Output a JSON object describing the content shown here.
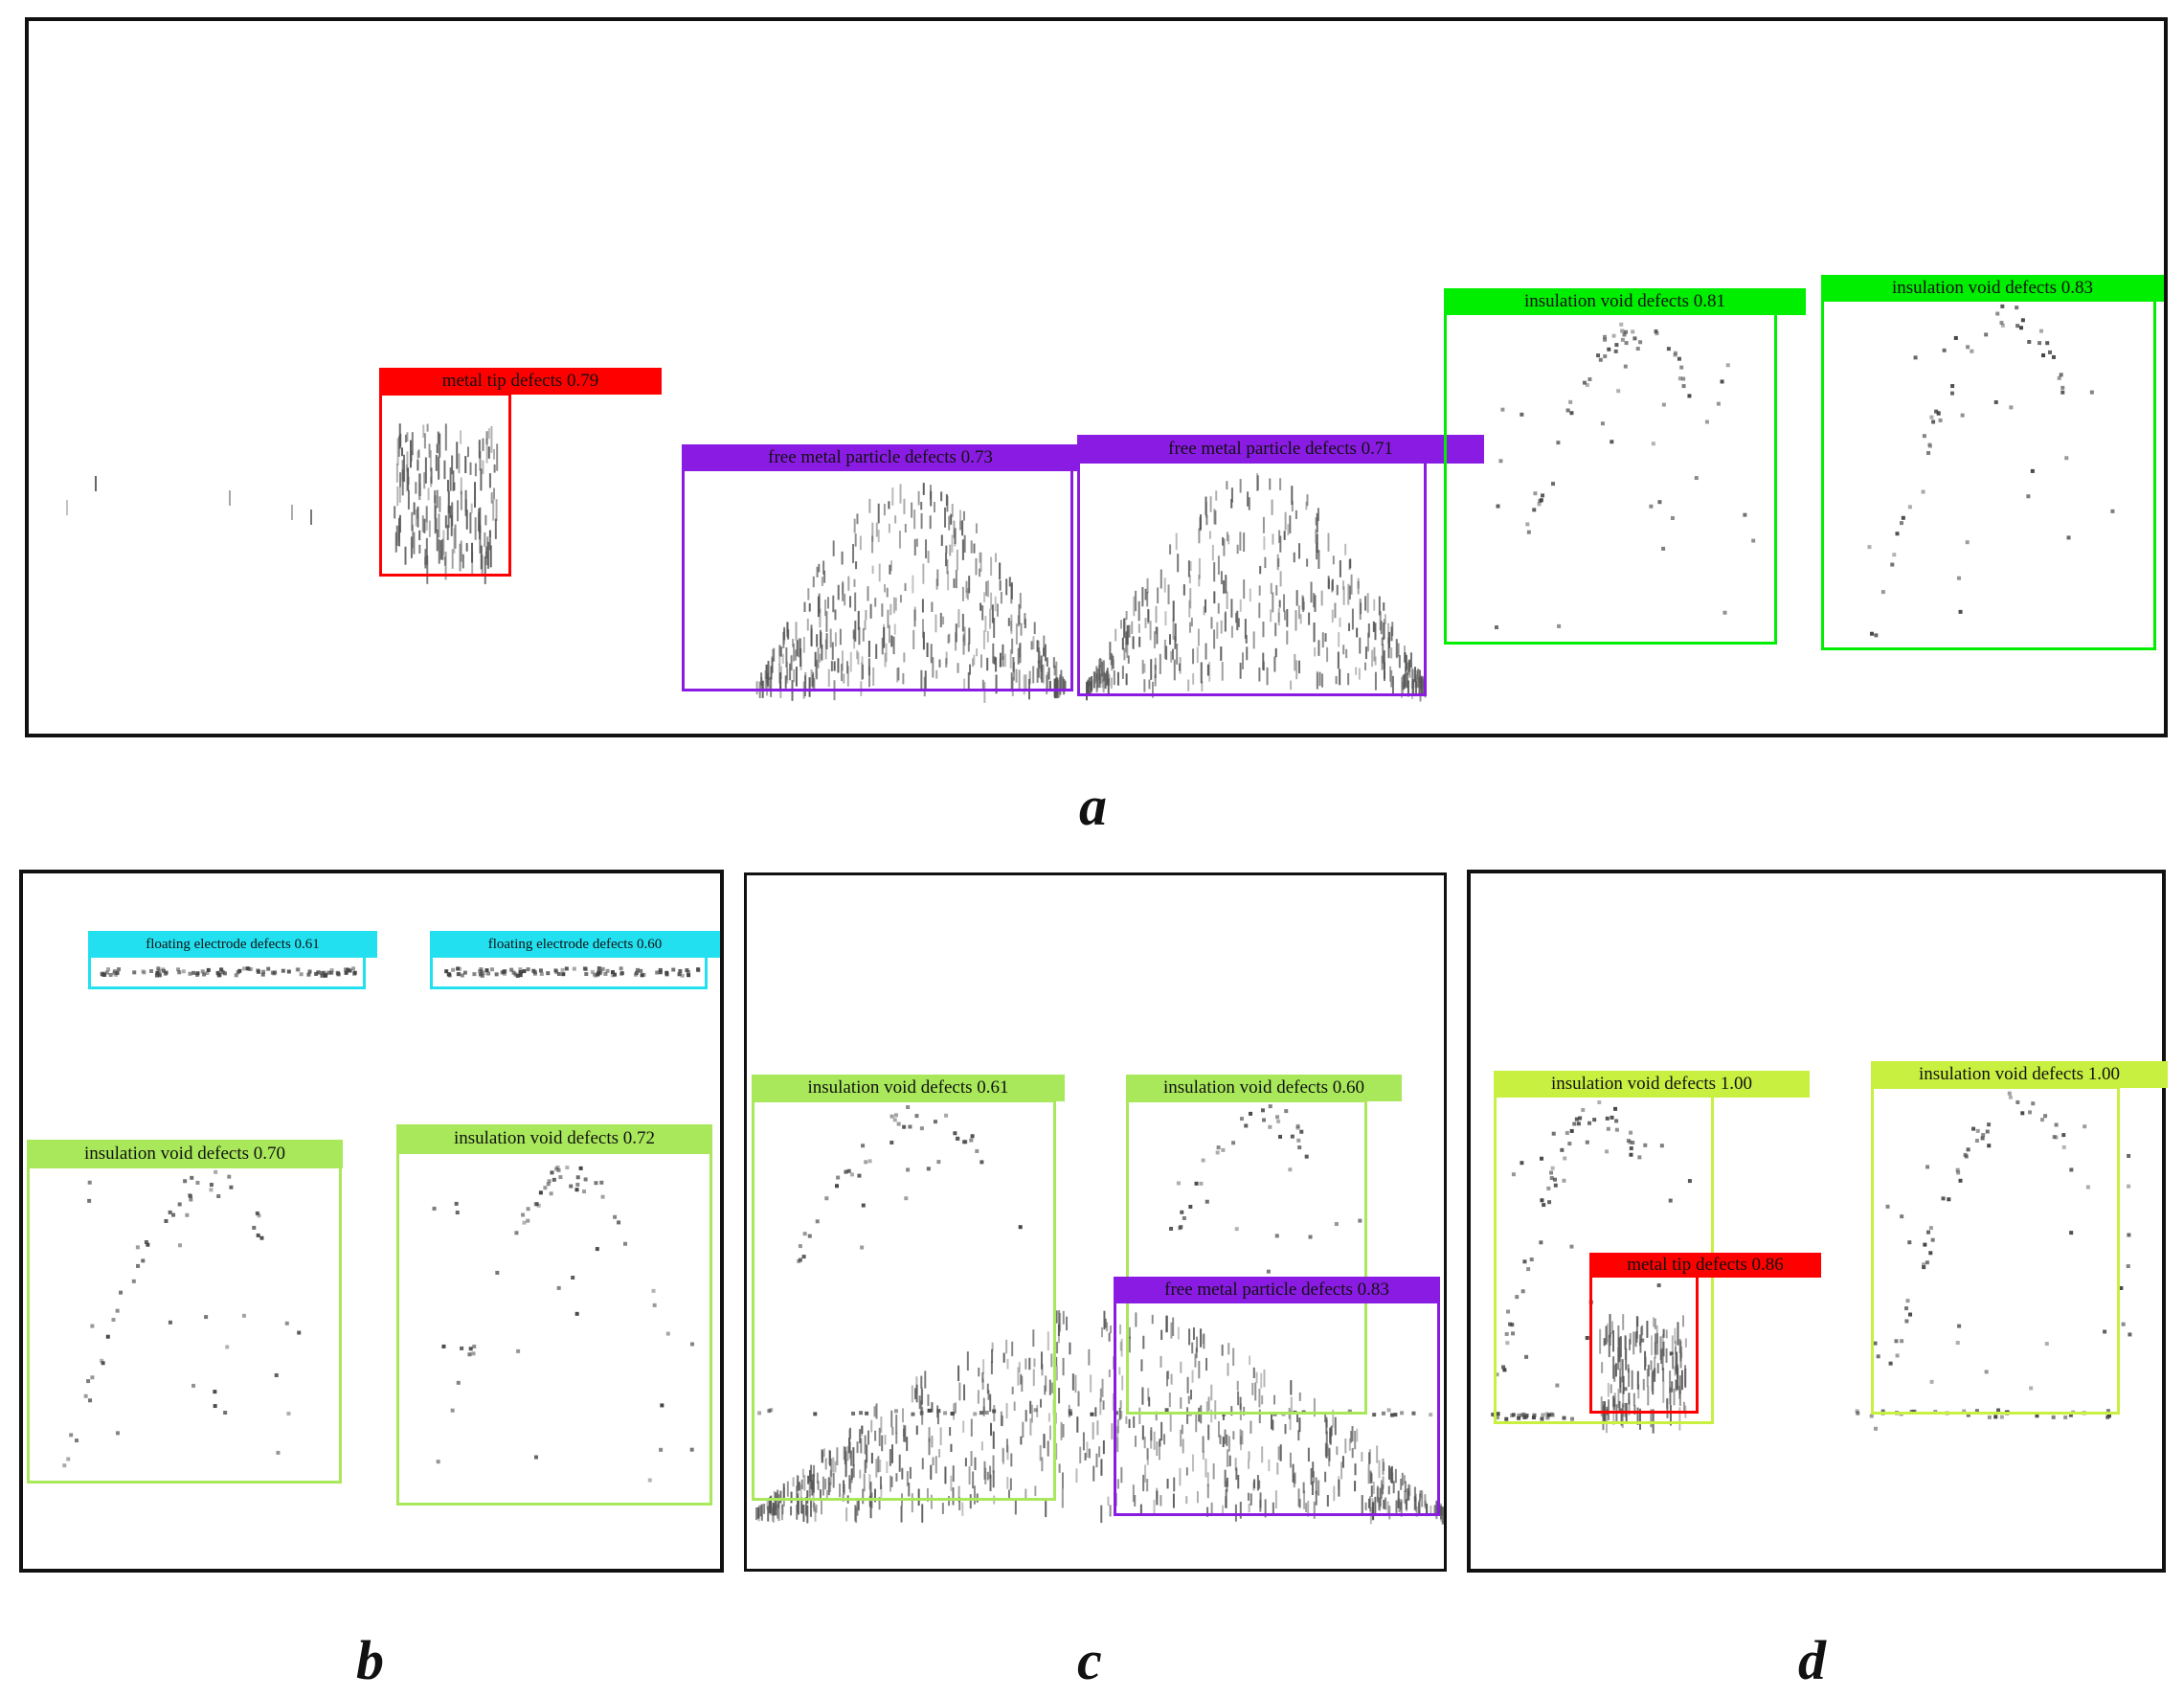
{
  "colors": {
    "metal_tip": "#ff0000",
    "free_metal_particle": "#8a1be3",
    "insulation_void": "#00ee00",
    "insulation_void_light": "#a8e85a",
    "insulation_void_yellow": "#c8f040",
    "floating_electrode": "#22e0f0",
    "point": "#555555"
  },
  "panels": [
    {
      "caption": "a",
      "detections": [
        {
          "label": "metal tip defects 0.79",
          "class": "metal_tip"
        },
        {
          "label": "free metal particle defects 0.73",
          "class": "free_metal_particle"
        },
        {
          "label": "free metal particle defects 0.71",
          "class": "free_metal_particle"
        },
        {
          "label": "insulation void defects 0.81",
          "class": "insulation_void"
        },
        {
          "label": "insulation void defects 0.83",
          "class": "insulation_void"
        }
      ]
    },
    {
      "caption": "b",
      "detections": [
        {
          "label": "floating electrode defects 0.61",
          "class": "floating_electrode"
        },
        {
          "label": "floating electrode defects 0.60",
          "class": "floating_electrode"
        },
        {
          "label": "insulation void defects 0.70",
          "class": "insulation_void_light"
        },
        {
          "label": "insulation void defects 0.72",
          "class": "insulation_void_light"
        }
      ]
    },
    {
      "caption": "c",
      "detections": [
        {
          "label": "insulation void defects 0.61",
          "class": "insulation_void_light"
        },
        {
          "label": "insulation void defects 0.60",
          "class": "insulation_void_light"
        },
        {
          "label": "free metal particle defects 0.83",
          "class": "free_metal_particle"
        }
      ]
    },
    {
      "caption": "d",
      "detections": [
        {
          "label": "insulation void defects 1.00",
          "class": "insulation_void_yellow"
        },
        {
          "label": "insulation void defects 1.00",
          "class": "insulation_void_yellow"
        },
        {
          "label": "metal tip defects 0.86",
          "class": "metal_tip"
        }
      ]
    }
  ]
}
